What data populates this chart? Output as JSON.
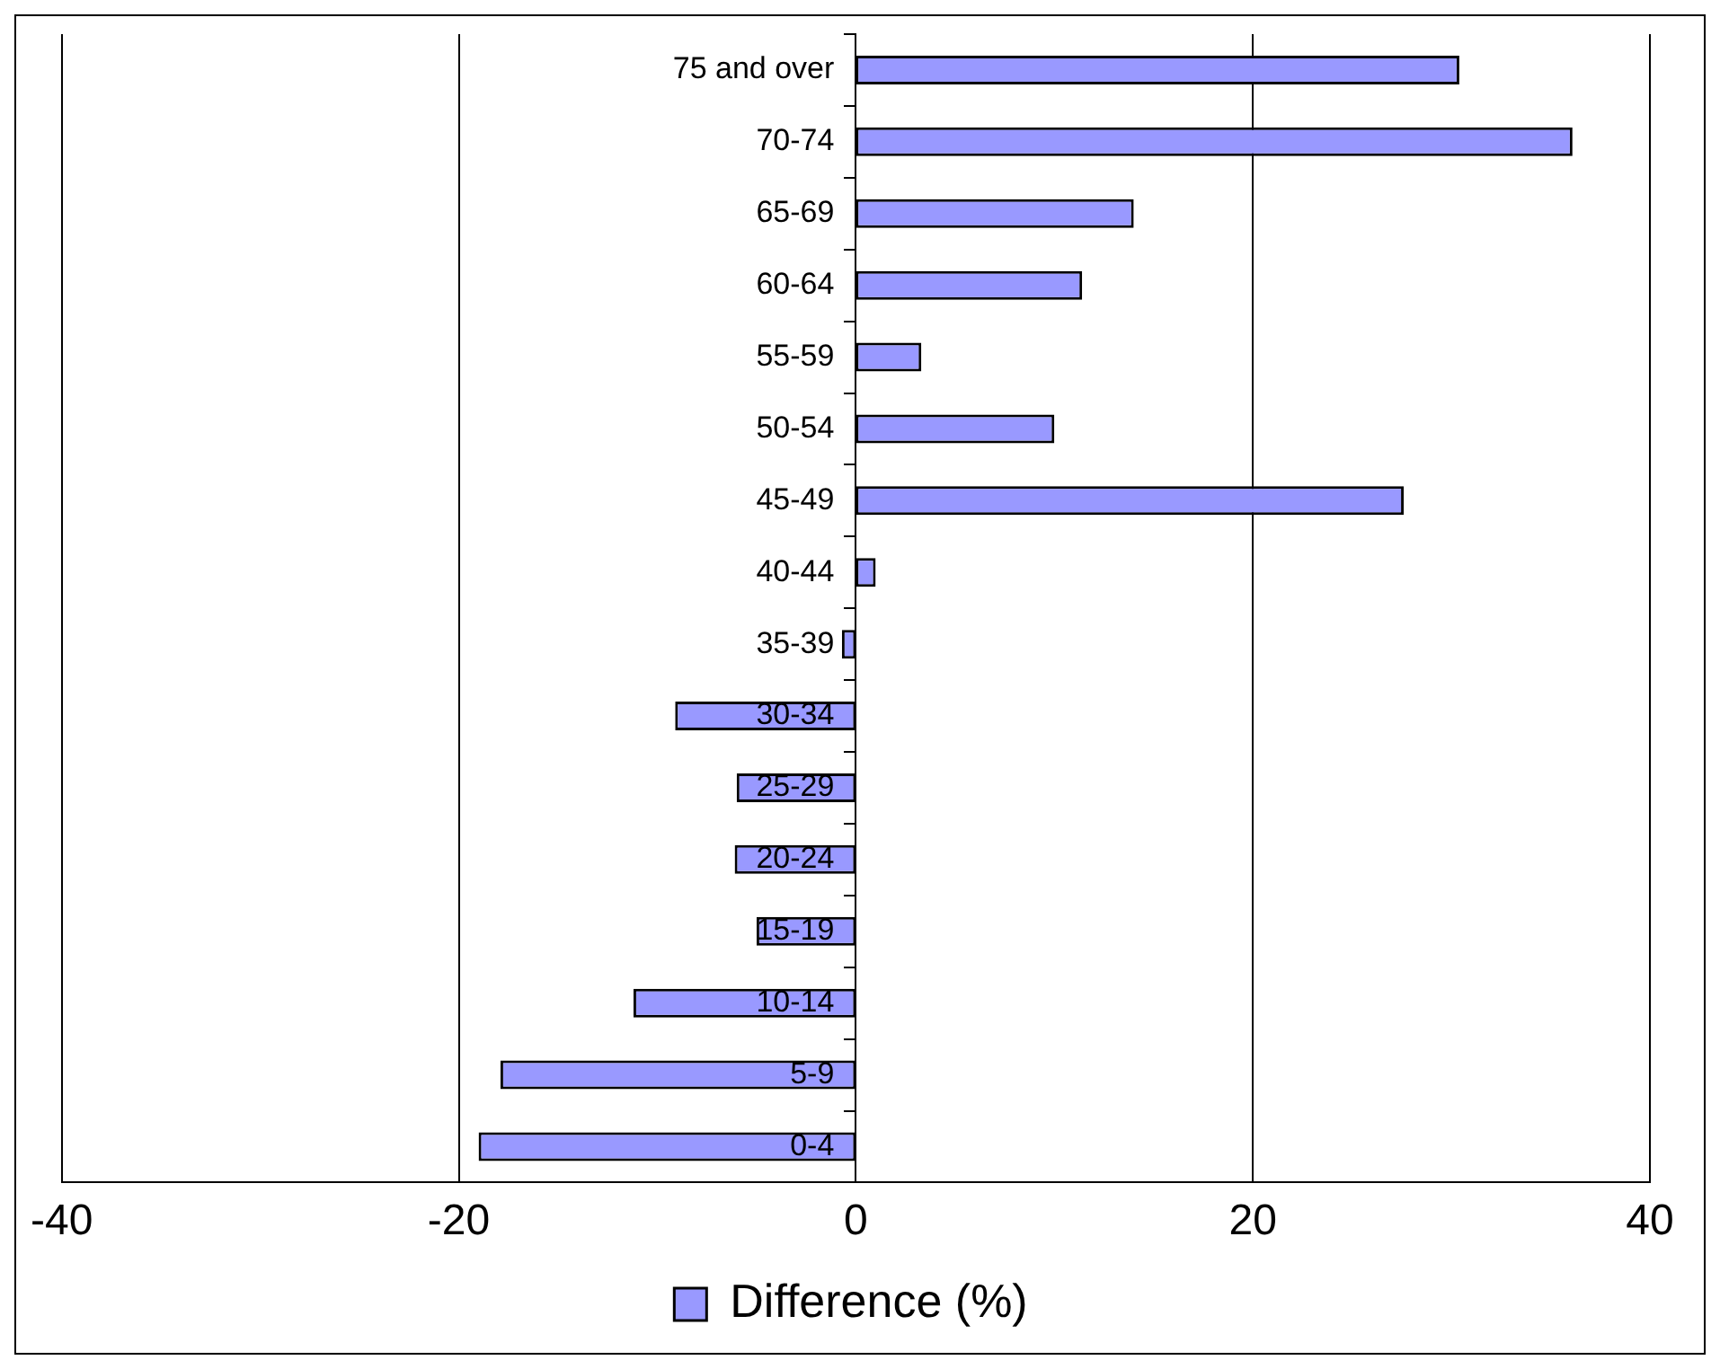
{
  "chart_data": {
    "type": "bar",
    "orientation": "horizontal",
    "categories": [
      "75 and over",
      "70-74",
      "65-69",
      "60-64",
      "55-59",
      "50-54",
      "45-49",
      "40-44",
      "35-39",
      "30-34",
      "25-29",
      "20-24",
      "15-19",
      "10-14",
      "5-9",
      "0-4"
    ],
    "series": [
      {
        "name": "Difference (%)",
        "color": "#9999ff",
        "values": [
          30.4,
          36.1,
          14.0,
          11.4,
          3.3,
          10.0,
          27.6,
          1.0,
          -0.7,
          -9.1,
          -6.0,
          -6.1,
          -5.0,
          -11.2,
          -17.9,
          -19.0
        ]
      }
    ],
    "xlim": [
      -40,
      40
    ],
    "xticks": [
      -40,
      -20,
      0,
      20,
      40
    ],
    "grid": "x",
    "legend": "bottom"
  }
}
